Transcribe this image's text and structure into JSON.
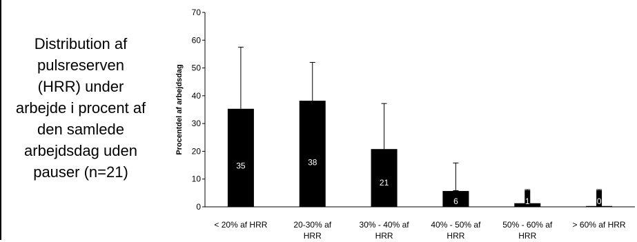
{
  "caption": "Distribution af\npulsreserven\n(HRR) under\narbejde i procent af\nden samlede\narbejdsdag uden\npauser (n=21)",
  "chart_data": {
    "type": "bar",
    "ylabel": "Procentdel af arbejdsdag",
    "ylim": [
      0,
      70
    ],
    "yticks": [
      0,
      10,
      20,
      30,
      40,
      50,
      60,
      70
    ],
    "categories": [
      [
        "< 20% af HRR"
      ],
      [
        "20-30% af",
        "HRR"
      ],
      [
        "30% - 40% af",
        "HRR"
      ],
      [
        "40% - 50% af",
        "HRR"
      ],
      [
        "50% - 60% af",
        "HRR"
      ],
      [
        "> 60% af HRR"
      ]
    ],
    "values": [
      35.3,
      38.2,
      20.8,
      5.7,
      1.3,
      0.3
    ],
    "data_labels": [
      "35",
      "38",
      "21",
      "6",
      "1",
      "0"
    ],
    "error_upper": [
      57.5,
      52,
      37.2,
      15.8,
      6.2,
      6.2
    ],
    "bar_color": "#000000",
    "grid": false,
    "legend": "none"
  }
}
